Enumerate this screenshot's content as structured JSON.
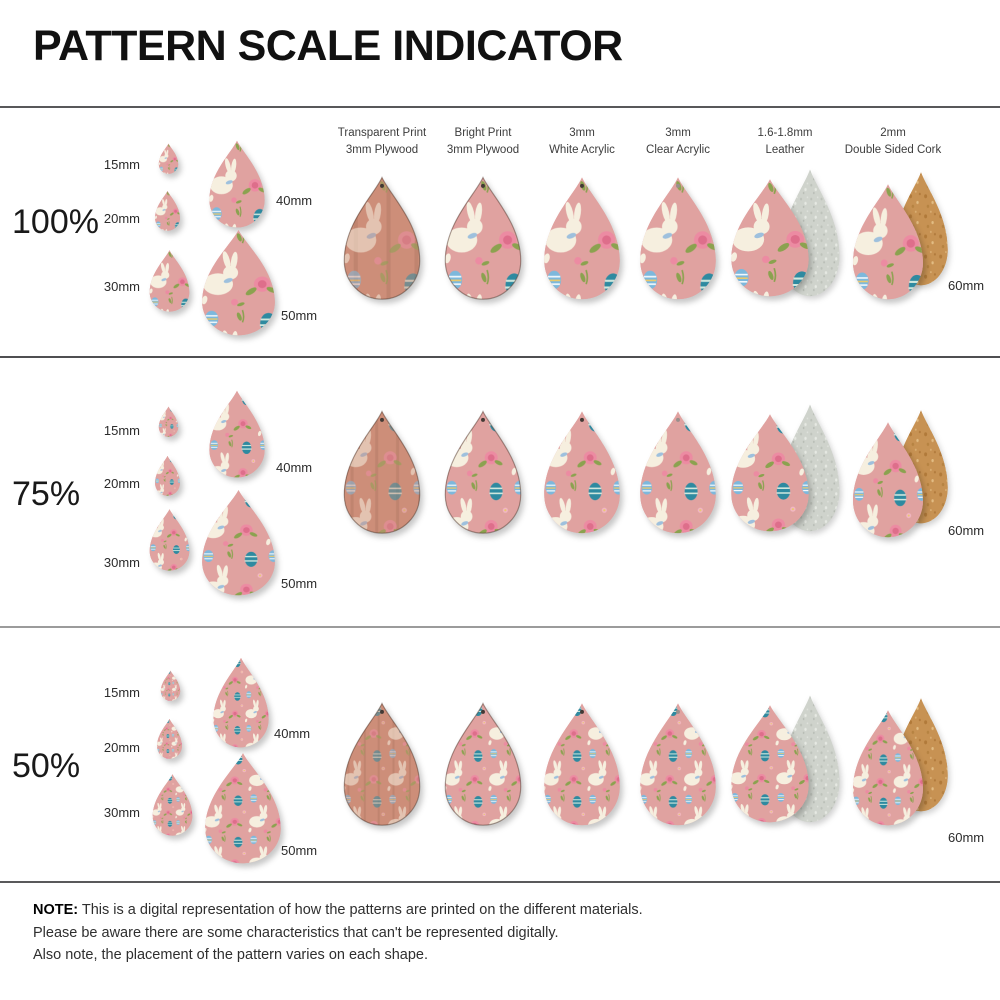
{
  "title": "PATTERN SCALE INDICATOR",
  "materials": [
    {
      "l1": "Transparent Print",
      "l2": "3mm Plywood"
    },
    {
      "l1": "Bright Print",
      "l2": "3mm Plywood"
    },
    {
      "l1": "3mm",
      "l2": "White Acrylic"
    },
    {
      "l1": "3mm",
      "l2": "Clear Acrylic"
    },
    {
      "l1": "1.6-1.8mm",
      "l2": "Leather"
    },
    {
      "l1": "2mm",
      "l2": "Double Sided Cork"
    }
  ],
  "rows": [
    {
      "scale": "100%",
      "s15": "15mm",
      "s20": "20mm",
      "s30": "30mm",
      "s40": "40mm",
      "s50": "50mm",
      "s60": "60mm"
    },
    {
      "scale": "75%",
      "s15": "15mm",
      "s20": "20mm",
      "s30": "30mm",
      "s40": "40mm",
      "s50": "50mm",
      "s60": "60mm"
    },
    {
      "scale": "50%",
      "s15": "15mm",
      "s20": "20mm",
      "s30": "30mm",
      "s40": "40mm",
      "s50": "50mm",
      "s60": "60mm"
    }
  ],
  "note": {
    "label": "NOTE:",
    "l1": "This is a digital representation of how the patterns are printed on the different materials.",
    "l2": "Please be aware there are some characteristics that can't be represented digitally.",
    "l3": "Also note, the placement of the pattern varies on each shape."
  },
  "colors": {
    "pattern_pink": "#e0a2a0",
    "wood": "#cd8e79",
    "cork": "#c79253",
    "suede": "#cfd3cc",
    "bunny_cream": "#f6efdf",
    "rose_pink": "#ec8ba2",
    "leaf_green": "#8ba24f",
    "egg_teal": "#2e8aa0",
    "egg_blue": "#7db8dc",
    "egg_yellow": "#e9c96d",
    "divider_dark": "#58585a",
    "divider_light": "#9b9b9b"
  }
}
